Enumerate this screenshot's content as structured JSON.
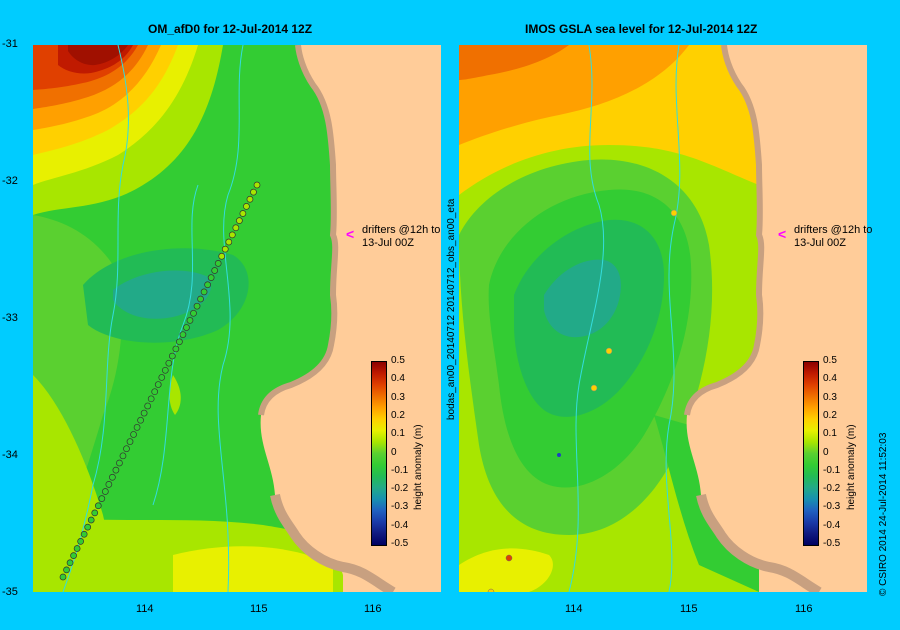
{
  "left_panel": {
    "title": "OM_afD0  for 12-Jul-2014 12Z",
    "annotation": "drifters @12h to\n13-Jul 00Z"
  },
  "right_panel": {
    "title": "IMOS GSLA sea level  for 12-Jul-2014 12Z",
    "annotation": "drifters @12h to\n13-Jul 00Z",
    "side_label": "bodas_an00_20140712   20140712_obs_an00_eta"
  },
  "axes": {
    "y_ticks": [
      "-31",
      "-32",
      "-33",
      "-34",
      "-35"
    ],
    "x_ticks": [
      "114",
      "115",
      "116"
    ]
  },
  "colorbar": {
    "title": "height anomaly (m)",
    "ticks": [
      "0.5",
      "0.4",
      "0.3",
      "0.2",
      "0.1",
      "0",
      "-0.1",
      "-0.2",
      "-0.3",
      "-0.4",
      "-0.5"
    ],
    "colors": [
      "#8b0000",
      "#c01a00",
      "#e04000",
      "#f07000",
      "#ffa000",
      "#ffd000",
      "#e8f000",
      "#a8e600",
      "#5ad030",
      "#33cc33",
      "#22bb55",
      "#22aa88",
      "#1890b0",
      "#2060c0",
      "#1a3aa8",
      "#101a80",
      "#000060"
    ]
  },
  "credit": "© CSIRO 2014   24-Jul-2014 11:52:03",
  "colors": {
    "background": "#00ccff",
    "land": "#ffcc99",
    "shore": "#c8a080",
    "river": "#33dddd",
    "arrow": "#ff00ff"
  }
}
